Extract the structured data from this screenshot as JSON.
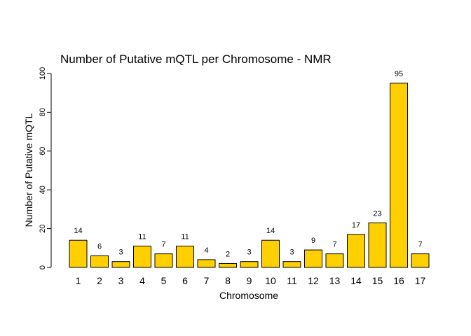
{
  "chart_data": {
    "type": "bar",
    "title": "Number of Putative mQTL per Chromosome - NMR",
    "xlabel": "Chromosome",
    "ylabel": "Number of Putative mQTL",
    "categories": [
      "1",
      "2",
      "3",
      "4",
      "5",
      "6",
      "7",
      "8",
      "9",
      "10",
      "11",
      "12",
      "13",
      "14",
      "15",
      "16",
      "17"
    ],
    "values": [
      14,
      6,
      3,
      11,
      7,
      11,
      4,
      2,
      3,
      14,
      3,
      9,
      7,
      17,
      23,
      95,
      7
    ],
    "data_labels": [
      "14",
      "6",
      "3",
      "11",
      "7",
      "11",
      "4",
      "2",
      "3",
      "14",
      "3",
      "9",
      "7",
      "17",
      "23",
      "95",
      "7"
    ],
    "ylim": [
      0,
      100
    ],
    "yticks": [
      0,
      20,
      40,
      60,
      80,
      100
    ],
    "ytick_labels": [
      "0",
      "20",
      "40",
      "60",
      "80",
      "100"
    ],
    "bar_color": "#FFD000",
    "grid": false,
    "legend": "none"
  }
}
